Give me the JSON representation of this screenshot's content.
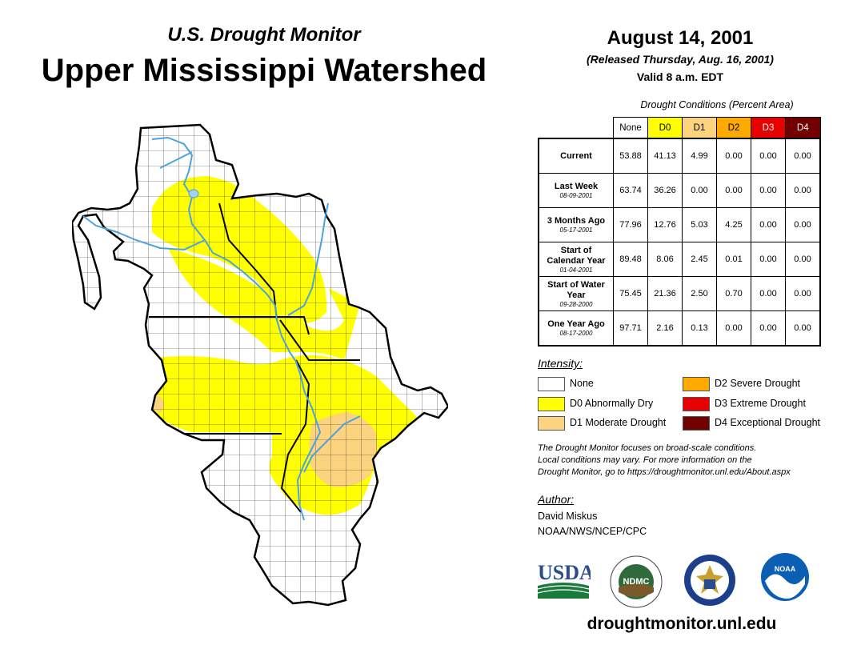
{
  "header": {
    "subtitle": "U.S. Drought Monitor",
    "title": "Upper Mississippi Watershed",
    "date": "August 14, 2001",
    "released": "(Released Thursday, Aug. 16, 2001)",
    "valid": "Valid 8 a.m. EDT"
  },
  "table": {
    "caption": "Drought Conditions (Percent Area)",
    "columns": [
      "None",
      "D0",
      "D1",
      "D2",
      "D3",
      "D4"
    ],
    "column_colors": [
      "#ffffff",
      "#ffff00",
      "#fcd37f",
      "#ffaa00",
      "#e60000",
      "#730000"
    ],
    "rows": [
      {
        "label": "Current",
        "date": "",
        "values": [
          "53.88",
          "41.13",
          "4.99",
          "0.00",
          "0.00",
          "0.00"
        ]
      },
      {
        "label": "Last Week",
        "date": "08-09-2001",
        "values": [
          "63.74",
          "36.26",
          "0.00",
          "0.00",
          "0.00",
          "0.00"
        ]
      },
      {
        "label": "3 Months Ago",
        "date": "05-17-2001",
        "values": [
          "77.96",
          "12.76",
          "5.03",
          "4.25",
          "0.00",
          "0.00"
        ]
      },
      {
        "label": "Start of Calendar Year",
        "date": "01-04-2001",
        "values": [
          "89.48",
          "8.06",
          "2.45",
          "0.01",
          "0.00",
          "0.00"
        ]
      },
      {
        "label": "Start of Water Year",
        "date": "09-28-2000",
        "values": [
          "75.45",
          "21.36",
          "2.50",
          "0.70",
          "0.00",
          "0.00"
        ]
      },
      {
        "label": "One Year Ago",
        "date": "08-17-2000",
        "values": [
          "97.71",
          "2.16",
          "0.13",
          "0.00",
          "0.00",
          "0.00"
        ]
      }
    ]
  },
  "legend": {
    "title": "Intensity:",
    "items": [
      {
        "label": "None",
        "color": "#ffffff"
      },
      {
        "label": "D0 Abnormally Dry",
        "color": "#ffff00"
      },
      {
        "label": "D1 Moderate Drought",
        "color": "#fcd37f"
      },
      {
        "label": "D2 Severe Drought",
        "color": "#ffaa00"
      },
      {
        "label": "D3 Extreme Drought",
        "color": "#e60000"
      },
      {
        "label": "D4 Exceptional Drought",
        "color": "#730000"
      }
    ]
  },
  "note": {
    "line1": "The Drought Monitor focuses on broad-scale conditions.",
    "line2": "Local conditions may vary. For more information on the",
    "line3": "Drought Monitor, go to https://droughtmonitor.unl.edu/About.aspx"
  },
  "author": {
    "title": "Author:",
    "name": "David Miskus",
    "org": "NOAA/NWS/NCEP/CPC"
  },
  "logos": {
    "usda": "USDA",
    "ndmc": "NDMC",
    "noaa": "NOAA"
  },
  "website": "droughtmonitor.unl.edu",
  "map_colors": {
    "none": "#ffffff",
    "d0": "#ffff00",
    "d1": "#fcd37f",
    "water": "#4aa3df",
    "lake": "#a6cff0"
  }
}
